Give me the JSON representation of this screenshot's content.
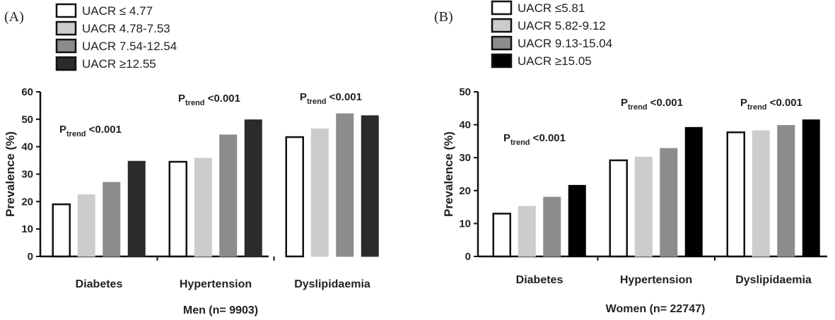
{
  "chart_data": [
    {
      "type": "bar",
      "panel_label": "(A)",
      "title": "",
      "xlabel": "Men (n= 9903)",
      "ylabel": "Prevalence (%)",
      "ylim": [
        0,
        60
      ],
      "yticks": [
        "0",
        "10",
        "20",
        "30",
        "40",
        "50",
        "60"
      ],
      "categories": [
        "Diabetes",
        "Hypertension",
        "Dyslipidaemia"
      ],
      "series": [
        {
          "name": "UACR ≤ 4.77",
          "color": "#ffffff",
          "values": [
            19,
            34.5,
            43.5
          ]
        },
        {
          "name": "UACR 4.78-7.53",
          "color": "#cccccc",
          "values": [
            22.5,
            35.8,
            46.5
          ]
        },
        {
          "name": "UACR 7.54-12.54",
          "color": "#8c8c8c",
          "values": [
            27,
            44.3,
            52
          ]
        },
        {
          "name": "UACR ≥12.55",
          "color": "#2b2b2b",
          "values": [
            34.7,
            49.8,
            51.3
          ]
        }
      ],
      "annotations": [
        {
          "main": "P",
          "sub": "trend",
          "rest": " <0.001"
        },
        {
          "main": "P",
          "sub": "trend",
          "rest": " <0.001"
        },
        {
          "main": "P",
          "sub": "trend",
          "rest": " <0.001"
        }
      ]
    },
    {
      "type": "bar",
      "panel_label": "(B)",
      "title": "",
      "xlabel": "Women (n= 22747)",
      "ylabel": "Prevalence (%)",
      "ylim": [
        0,
        50
      ],
      "yticks": [
        "0",
        "10",
        "20",
        "30",
        "40",
        "50"
      ],
      "categories": [
        "Diabetes",
        "Hypertension",
        "Dyslipidaemia"
      ],
      "series": [
        {
          "name": "UACR ≤5.81",
          "color": "#ffffff",
          "values": [
            13,
            29.2,
            37.7
          ]
        },
        {
          "name": "UACR 5.82-9.12",
          "color": "#cccccc",
          "values": [
            15.2,
            30.2,
            38.2
          ]
        },
        {
          "name": "UACR 9.13-15.04",
          "color": "#8c8c8c",
          "values": [
            18,
            32.8,
            39.8
          ]
        },
        {
          "name": "UACR ≥15.05",
          "color": "#000000",
          "values": [
            21.6,
            39.2,
            41.5
          ]
        }
      ],
      "annotations": [
        {
          "main": "P",
          "sub": "trend",
          "rest": " <0.001"
        },
        {
          "main": "P",
          "sub": "trend",
          "rest": " <0.001"
        },
        {
          "main": "P",
          "sub": "trend",
          "rest": " <0.001"
        }
      ]
    }
  ]
}
